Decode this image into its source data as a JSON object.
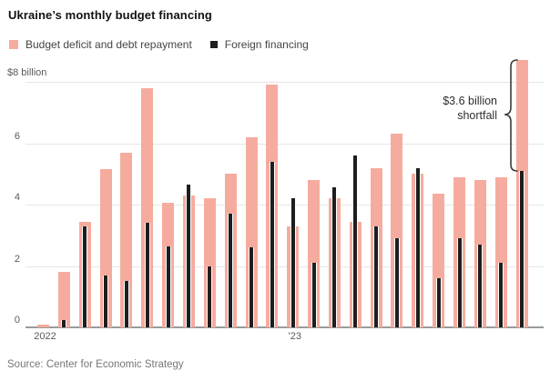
{
  "header": {
    "title": "Ukraine’s monthly budget financing"
  },
  "footer": {
    "source": "Source: Center for Economic Strategy"
  },
  "chart_data": {
    "type": "bar",
    "title": "Ukraine’s monthly budget financing",
    "unit": "$ billion",
    "categories": [
      "Jan 2022",
      "Feb 2022",
      "Mar 2022",
      "Apr 2022",
      "May 2022",
      "Jun 2022",
      "Jul 2022",
      "Aug 2022",
      "Sep 2022",
      "Oct 2022",
      "Nov 2022",
      "Dec 2022",
      "Jan 2023",
      "Feb 2023",
      "Mar 2023",
      "Apr 2023",
      "May 2023",
      "Jun 2023",
      "Jul 2023",
      "Aug 2023",
      "Sep 2023",
      "Oct 2023",
      "Nov 2023",
      "Dec 2023"
    ],
    "series": [
      {
        "name": "Budget deficit and debt repayment",
        "color": "#f6ab9f",
        "values": [
          0.1,
          1.8,
          3.45,
          5.15,
          5.7,
          7.8,
          4.05,
          4.3,
          4.2,
          5.0,
          6.2,
          7.9,
          3.3,
          4.8,
          4.2,
          3.45,
          5.2,
          6.3,
          5.0,
          4.35,
          4.9,
          4.8,
          4.9,
          8.7
        ]
      },
      {
        "name": "Foreign financing",
        "color": "#1e1e1e",
        "values": [
          0,
          0.25,
          3.3,
          1.7,
          1.5,
          3.4,
          2.65,
          4.65,
          2.0,
          3.7,
          2.6,
          5.4,
          4.2,
          2.1,
          4.55,
          5.6,
          3.3,
          2.9,
          5.2,
          1.6,
          2.9,
          2.7,
          2.1,
          5.1
        ]
      }
    ],
    "y_axis": {
      "top_label": "$8 billion",
      "tick_values": [
        6,
        4,
        2,
        0
      ],
      "min": 0,
      "max_gridline": 8,
      "grid": true
    },
    "x_axis": {
      "visible_tick_labels": [
        {
          "label": "2022",
          "month_index": 0
        },
        {
          "label": "’23",
          "month_index": 12
        }
      ]
    },
    "annotation": {
      "line1": "$3.6 billion",
      "line2": "shortfall"
    },
    "legend_position": "top"
  }
}
